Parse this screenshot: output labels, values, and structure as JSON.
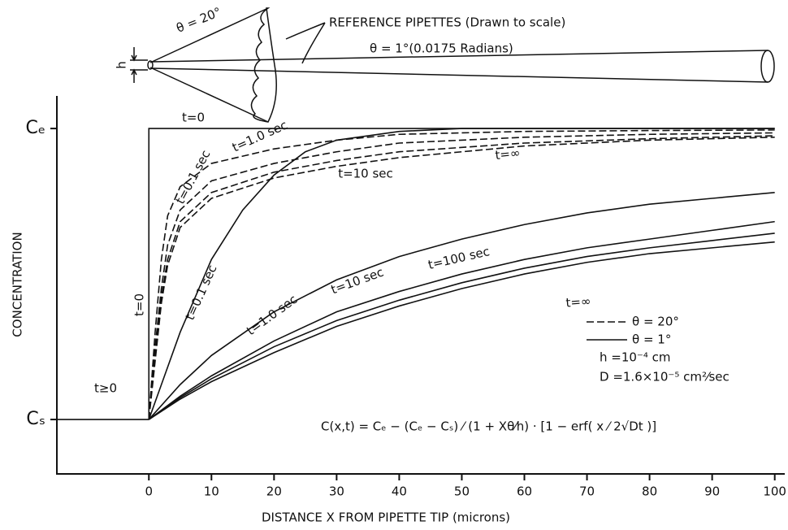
{
  "chart_data": {
    "type": "line",
    "diagram": {
      "label": "REFERENCE PIPETTES (Drawn to scale)",
      "wide_angle": "θ = 20°",
      "narrow_angle": "θ = 1°(0.0175 Radians)",
      "tip": "h"
    },
    "ylabel": "CONCENTRATION",
    "xlabel": "DISTANCE  X  FROM  PIPETTE  TIP    (microns)",
    "xlim": [
      -14.7,
      101.6
    ],
    "xticks": [
      0,
      10,
      20,
      30,
      40,
      50,
      60,
      70,
      80,
      90,
      100
    ],
    "ylim": [
      -0.187,
      1.112
    ],
    "yticks": [
      {
        "value": 0,
        "label": "Cₛ"
      },
      {
        "value": 1,
        "label": "Cₑ"
      }
    ],
    "color": "#111111",
    "series": [
      {
        "label": "t≥0",
        "dash": false,
        "x": [
          -14.7,
          0
        ],
        "values": [
          0,
          0
        ]
      },
      {
        "label": "t=0",
        "dash": false,
        "x": [
          0,
          0,
          100
        ],
        "values": [
          0,
          1,
          1
        ]
      },
      {
        "label": "t=0.1 sec",
        "dash": false,
        "x": [
          0,
          2,
          5,
          10,
          15,
          20,
          25,
          30,
          40,
          50,
          70,
          100
        ],
        "values": [
          0,
          0.12,
          0.3,
          0.55,
          0.72,
          0.84,
          0.92,
          0.96,
          0.99,
          1,
          1,
          1
        ]
      },
      {
        "label": "t=1.0 sec",
        "dash": false,
        "x": [
          0,
          5,
          10,
          20,
          30,
          40,
          50,
          60,
          70,
          80,
          90,
          100
        ],
        "values": [
          0,
          0.12,
          0.22,
          0.37,
          0.48,
          0.56,
          0.62,
          0.67,
          0.71,
          0.74,
          0.76,
          0.78
        ]
      },
      {
        "label": "t=10 sec",
        "dash": false,
        "x": [
          0,
          5,
          10,
          20,
          30,
          40,
          50,
          60,
          70,
          80,
          90,
          100
        ],
        "values": [
          0,
          0.08,
          0.15,
          0.27,
          0.37,
          0.44,
          0.5,
          0.55,
          0.59,
          0.62,
          0.65,
          0.68
        ]
      },
      {
        "label": "t=100 sec",
        "dash": false,
        "x": [
          0,
          5,
          10,
          20,
          30,
          40,
          50,
          60,
          70,
          80,
          90,
          100
        ],
        "values": [
          0,
          0.075,
          0.14,
          0.25,
          0.34,
          0.41,
          0.47,
          0.52,
          0.56,
          0.59,
          0.615,
          0.64
        ]
      },
      {
        "label": "t=∞",
        "dash": false,
        "x": [
          0,
          5,
          10,
          20,
          30,
          40,
          50,
          60,
          70,
          80,
          90,
          100
        ],
        "values": [
          0,
          0.07,
          0.13,
          0.23,
          0.32,
          0.39,
          0.45,
          0.5,
          0.54,
          0.57,
          0.59,
          0.61
        ]
      },
      {
        "label": "t=0.1 sec",
        "dash": true,
        "x": [
          0,
          1,
          2,
          3,
          5,
          10,
          20,
          30,
          40,
          60,
          80,
          100
        ],
        "values": [
          0,
          0.3,
          0.55,
          0.7,
          0.8,
          0.88,
          0.93,
          0.96,
          0.98,
          0.99,
          0.993,
          0.995
        ]
      },
      {
        "label": "t=1.0 sec",
        "dash": true,
        "x": [
          0,
          1,
          2,
          3,
          5,
          10,
          20,
          30,
          40,
          60,
          80,
          100
        ],
        "values": [
          0,
          0.25,
          0.45,
          0.6,
          0.72,
          0.82,
          0.88,
          0.92,
          0.95,
          0.97,
          0.98,
          0.985
        ]
      },
      {
        "label": "t=10 sec",
        "dash": true,
        "x": [
          0,
          1,
          2,
          3,
          5,
          10,
          20,
          30,
          40,
          60,
          80,
          100
        ],
        "values": [
          0,
          0.22,
          0.42,
          0.55,
          0.68,
          0.78,
          0.85,
          0.89,
          0.92,
          0.95,
          0.965,
          0.975
        ]
      },
      {
        "label": "t=∞",
        "dash": true,
        "x": [
          0,
          1,
          2,
          3,
          5,
          10,
          20,
          30,
          40,
          60,
          80,
          100
        ],
        "values": [
          0,
          0.2,
          0.4,
          0.53,
          0.66,
          0.76,
          0.83,
          0.87,
          0.9,
          0.94,
          0.96,
          0.97
        ]
      }
    ],
    "annotations": [
      "t=0",
      "h =10⁻⁴ cm",
      "D =1.6×10⁻⁵ cm²⁄sec",
      "C(x,t) = Cₑ − (Cₑ − Cₛ) ⁄ (1 + Xθ⁄h) · [1 − erf( x ⁄ 2√Dt )]"
    ],
    "legend": [
      {
        "label": "θ = 20°",
        "dash": true
      },
      {
        "label": "θ = 1°",
        "dash": false
      }
    ]
  }
}
